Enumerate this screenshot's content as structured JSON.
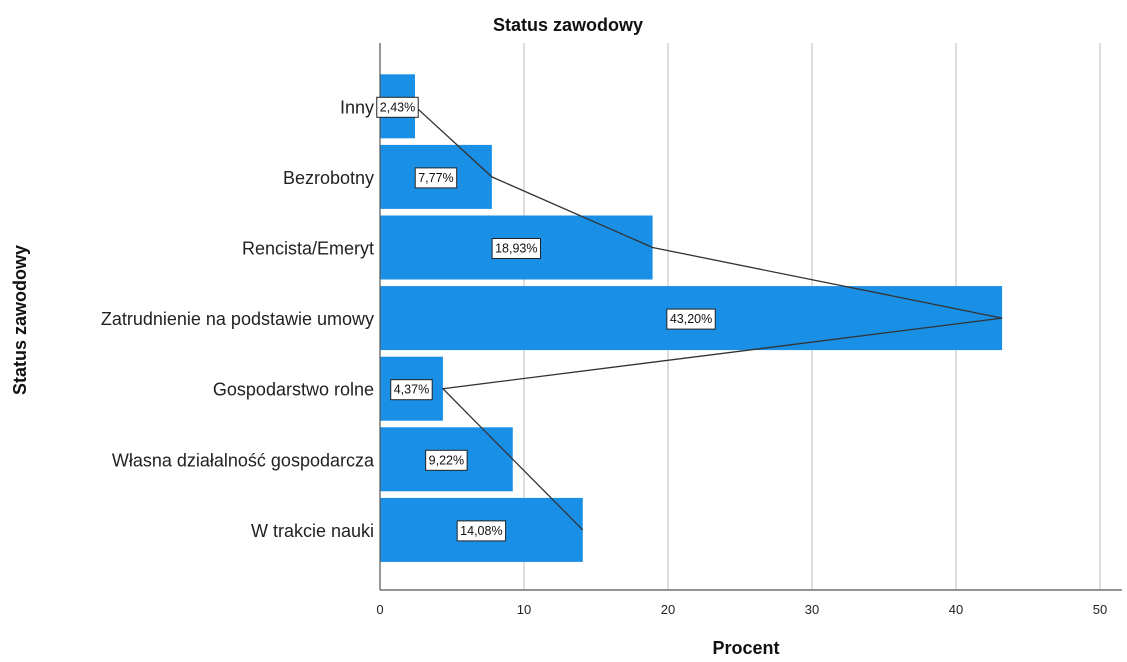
{
  "chart_data": {
    "type": "bar",
    "orientation": "horizontal",
    "title": "Status zawodowy",
    "xlabel": "Procent",
    "ylabel": "Status zawodowy",
    "categories": [
      "Inny",
      "Bezrobotny",
      "Rencista/Emeryt",
      "Zatrudnienie na podstawie umowy",
      "Gospodarstwo rolne",
      "Własna działalność gospodarcza",
      "W trakcie nauki"
    ],
    "values": [
      2.43,
      7.77,
      18.93,
      43.2,
      4.37,
      9.22,
      14.08
    ],
    "data_labels": [
      "2,43%",
      "7,77%",
      "18,93%",
      "43,20%",
      "4,37%",
      "9,22%",
      "14,08%"
    ],
    "xlim": [
      0,
      50
    ],
    "xticks": [
      "0",
      "10",
      "20",
      "30",
      "40",
      "50"
    ],
    "grid": "vertical",
    "overlay_line": true,
    "colors": {
      "bar": "#1a8fe6",
      "grid": "#c8c8c8",
      "axis": "#555555",
      "line": "#333333",
      "text": "#222222"
    }
  }
}
